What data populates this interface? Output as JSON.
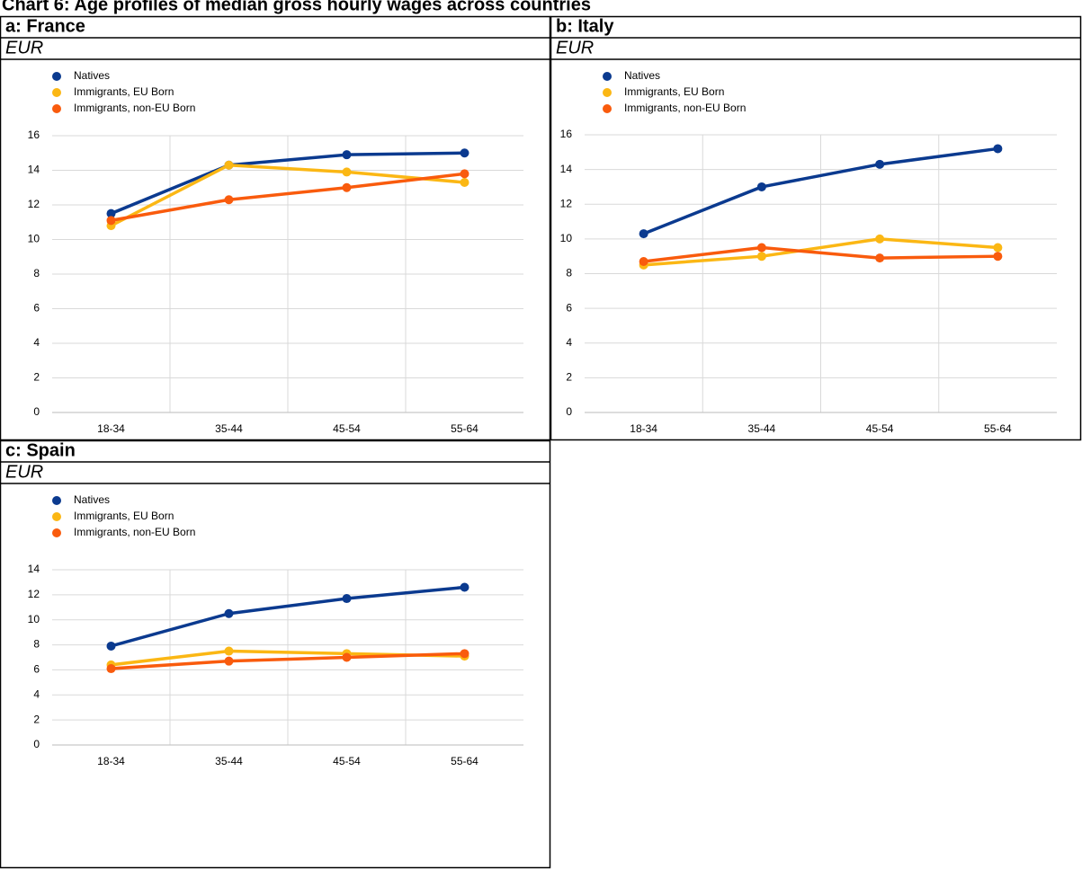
{
  "title": "Chart 6: Age profiles of median gross hourly wages across countries",
  "chart_data": [
    {
      "type": "line",
      "title": "a: France",
      "unit": "EUR",
      "categories": [
        "18-34",
        "35-44",
        "45-54",
        "55-64"
      ],
      "series": [
        {
          "name": "Natives",
          "color": "#0b3a8f",
          "values": [
            11.5,
            14.3,
            14.9,
            15.0
          ]
        },
        {
          "name": "Immigrants, EU Born",
          "color": "#fbb714",
          "values": [
            10.8,
            14.3,
            13.9,
            13.3
          ]
        },
        {
          "name": "Immigrants, non-EU Born",
          "color": "#f95b0d",
          "values": [
            11.1,
            12.3,
            13.0,
            13.8
          ]
        }
      ],
      "ylim": [
        0,
        16
      ],
      "yticks": [
        0,
        2,
        4,
        6,
        8,
        10,
        12,
        14,
        16
      ],
      "grid": true
    },
    {
      "type": "line",
      "title": "b: Italy",
      "unit": "EUR",
      "categories": [
        "18-34",
        "35-44",
        "45-54",
        "55-64"
      ],
      "series": [
        {
          "name": "Natives",
          "color": "#0b3a8f",
          "values": [
            10.3,
            13.0,
            14.3,
            15.2
          ]
        },
        {
          "name": "Immigrants, EU Born",
          "color": "#fbb714",
          "values": [
            8.5,
            9.0,
            10.0,
            9.5
          ]
        },
        {
          "name": "Immigrants, non-EU Born",
          "color": "#f95b0d",
          "values": [
            8.7,
            9.5,
            8.9,
            9.0
          ]
        }
      ],
      "ylim": [
        0,
        16
      ],
      "yticks": [
        0,
        2,
        4,
        6,
        8,
        10,
        12,
        14,
        16
      ],
      "grid": true
    },
    {
      "type": "line",
      "title": "c: Spain",
      "unit": "EUR",
      "categories": [
        "18-34",
        "35-44",
        "45-54",
        "55-64"
      ],
      "series": [
        {
          "name": "Natives",
          "color": "#0b3a8f",
          "values": [
            7.9,
            10.5,
            11.7,
            12.6
          ]
        },
        {
          "name": "Immigrants, EU Born",
          "color": "#fbb714",
          "values": [
            6.4,
            7.5,
            7.3,
            7.1
          ]
        },
        {
          "name": "Immigrants, non-EU Born",
          "color": "#f95b0d",
          "values": [
            6.1,
            6.7,
            7.0,
            7.3
          ]
        }
      ],
      "ylim": [
        0,
        14
      ],
      "yticks": [
        0,
        2,
        4,
        6,
        8,
        10,
        12,
        14
      ],
      "grid": true
    }
  ]
}
